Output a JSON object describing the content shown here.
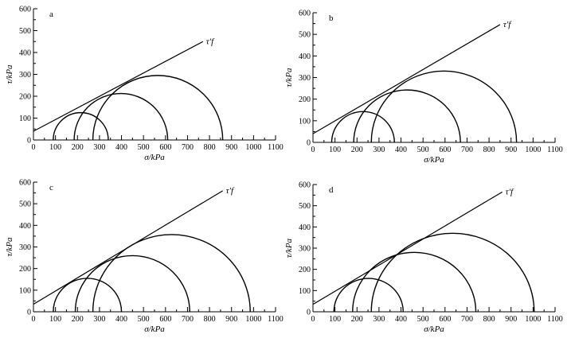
{
  "figure": {
    "background": "#ffffff",
    "ink": "#000000"
  },
  "chart_data": [
    {
      "type": "line",
      "panel_label": "a",
      "xlabel": "σ/kPa",
      "ylabel": "τ/kPa",
      "xlim": [
        0,
        1100
      ],
      "ylim": [
        0,
        600
      ],
      "xticks": [
        0,
        100,
        200,
        300,
        400,
        500,
        600,
        700,
        800,
        900,
        1000,
        1100
      ],
      "yticks": [
        0,
        100,
        200,
        300,
        400,
        500,
        600
      ],
      "envelope": {
        "label": "τ′f",
        "points": [
          [
            0,
            40
          ],
          [
            770,
            450
          ]
        ]
      },
      "mohr_circles": [
        {
          "sigma3": 90,
          "sigma1": 340
        },
        {
          "sigma3": 185,
          "sigma1": 610
        },
        {
          "sigma3": 270,
          "sigma1": 860
        }
      ]
    },
    {
      "type": "line",
      "panel_label": "b",
      "xlabel": "σ/kPa",
      "ylabel": "τ/kPa",
      "xlim": [
        0,
        1100
      ],
      "ylim": [
        0,
        600
      ],
      "xticks": [
        0,
        100,
        200,
        300,
        400,
        500,
        600,
        700,
        800,
        900,
        1000,
        1100
      ],
      "yticks": [
        0,
        100,
        200,
        300,
        400,
        500,
        600
      ],
      "envelope": {
        "label": "τ′f",
        "points": [
          [
            0,
            40
          ],
          [
            850,
            545
          ]
        ]
      },
      "mohr_circles": [
        {
          "sigma3": 85,
          "sigma1": 370
        },
        {
          "sigma3": 185,
          "sigma1": 670
        },
        {
          "sigma3": 265,
          "sigma1": 925
        }
      ]
    },
    {
      "type": "line",
      "panel_label": "c",
      "xlabel": "σ/kPa",
      "ylabel": "τ/kPa",
      "xlim": [
        0,
        1100
      ],
      "ylim": [
        0,
        600
      ],
      "xticks": [
        0,
        100,
        200,
        300,
        400,
        500,
        600,
        700,
        800,
        900,
        1000,
        1100
      ],
      "yticks": [
        0,
        100,
        200,
        300,
        400,
        500,
        600
      ],
      "envelope": {
        "label": "τ′f",
        "points": [
          [
            0,
            35
          ],
          [
            860,
            560
          ]
        ]
      },
      "mohr_circles": [
        {
          "sigma3": 90,
          "sigma1": 400
        },
        {
          "sigma3": 190,
          "sigma1": 710
        },
        {
          "sigma3": 270,
          "sigma1": 985
        }
      ]
    },
    {
      "type": "line",
      "panel_label": "d",
      "xlabel": "σ/kPa",
      "ylabel": "τ/kPa",
      "xlim": [
        0,
        1100
      ],
      "ylim": [
        0,
        600
      ],
      "xticks": [
        0,
        100,
        200,
        300,
        400,
        500,
        600,
        700,
        800,
        900,
        1000,
        1100
      ],
      "yticks": [
        0,
        100,
        200,
        300,
        400,
        500,
        600
      ],
      "envelope": {
        "label": "τ′f",
        "points": [
          [
            0,
            35
          ],
          [
            860,
            565
          ]
        ]
      },
      "mohr_circles": [
        {
          "sigma3": 95,
          "sigma1": 410
        },
        {
          "sigma3": 180,
          "sigma1": 740
        },
        {
          "sigma3": 265,
          "sigma1": 1005
        }
      ]
    }
  ]
}
